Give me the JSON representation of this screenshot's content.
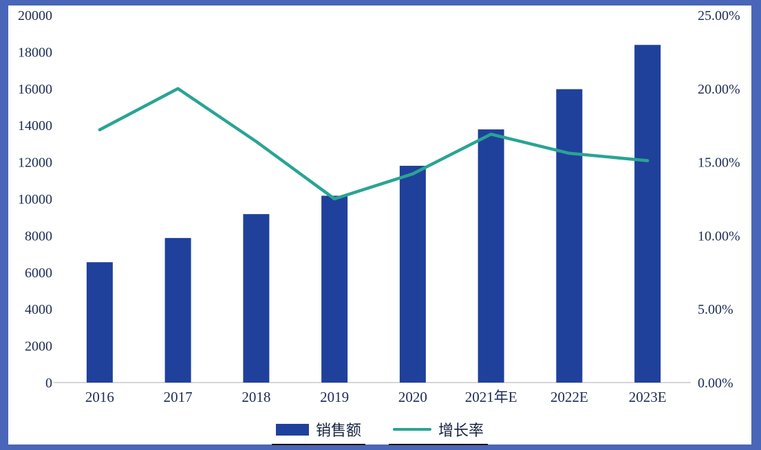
{
  "frame_color": "#4a66b8",
  "chart_data": {
    "type": "bar+line combo",
    "title": "",
    "categories": [
      "2016",
      "2017",
      "2018",
      "2019",
      "2020",
      "2021年E",
      "2022E",
      "2023E"
    ],
    "series": [
      {
        "name": "销售额",
        "type": "bar",
        "axis": "left",
        "color": "#1f419b",
        "values": [
          6550,
          7870,
          9170,
          10170,
          11800,
          13780,
          15970,
          18380
        ]
      },
      {
        "name": "增长率",
        "type": "line",
        "axis": "right",
        "color": "#2aa493",
        "values": [
          17.2,
          20.0,
          16.4,
          12.5,
          14.2,
          16.9,
          15.6,
          15.1
        ]
      }
    ],
    "left_axis": {
      "min": 0,
      "max": 20000,
      "step": 2000,
      "labels": [
        "0",
        "2000",
        "4000",
        "6000",
        "8000",
        "10000",
        "12000",
        "14000",
        "16000",
        "18000",
        "20000"
      ]
    },
    "right_axis": {
      "min": 0,
      "max": 25,
      "step": 5,
      "labels": [
        "0.00%",
        "5.00%",
        "10.00%",
        "15.00%",
        "20.00%",
        "25.00%"
      ]
    },
    "grid": "off",
    "legend_position": "bottom-center",
    "legend": [
      {
        "label": "销售额",
        "marker": "rect",
        "color": "#1f419b"
      },
      {
        "label": "增长率",
        "marker": "line",
        "color": "#2aa493"
      }
    ]
  }
}
